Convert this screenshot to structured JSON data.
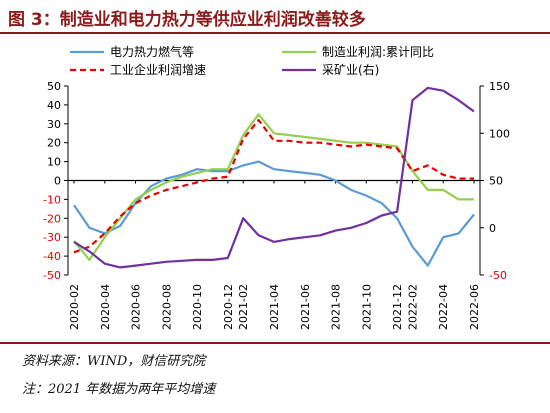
{
  "header": {
    "title": "图 3：制造业和电力热力等供应业利润改善较多"
  },
  "footer": {
    "source": "资料来源：WIND，财信研究院",
    "note": "注：2021 年数据为两年平均增速"
  },
  "chart_data": {
    "type": "line",
    "title": "图 3：制造业和电力热力等供应业利润改善较多",
    "x": [
      "2020-02",
      "2020-03",
      "2020-04",
      "2020-05",
      "2020-06",
      "2020-07",
      "2020-08",
      "2020-09",
      "2020-10",
      "2020-11",
      "2020-12",
      "2021-02",
      "2021-03",
      "2021-04",
      "2021-05",
      "2021-06",
      "2021-07",
      "2021-08",
      "2021-09",
      "2021-10",
      "2021-11",
      "2021-12",
      "2022-02",
      "2022-03",
      "2022-04",
      "2022-05",
      "2022-06"
    ],
    "xtick_labels": [
      "2020-02",
      "2020-04",
      "2020-06",
      "2020-08",
      "2020-10",
      "2020-12",
      "2021-02",
      "2021-04",
      "2021-06",
      "2021-08",
      "2021-10",
      "2021-12",
      "2022-02",
      "2022-04",
      "2022-06"
    ],
    "left_yaxis": {
      "ylim": [
        -50,
        50
      ],
      "ticks": [
        50,
        40,
        30,
        20,
        10,
        0,
        -10,
        -20,
        -30,
        -40,
        -50
      ],
      "negative_tick_color": "#e60000"
    },
    "right_yaxis": {
      "ylim": [
        -50,
        150
      ],
      "ticks": [
        150,
        100,
        50,
        0,
        -50
      ],
      "negative_tick_color": "#e60000"
    },
    "legend_position": "top",
    "grid": false,
    "series": [
      {
        "name": "电力热力燃气等",
        "axis": "left",
        "color": "#5b9bd5",
        "dash": "solid",
        "values": [
          -13,
          -25,
          -28,
          -24,
          -12,
          -3,
          1,
          3,
          6,
          5,
          5,
          8,
          10,
          6,
          5,
          4,
          3,
          0,
          -5,
          -8,
          -12,
          -20,
          -35,
          -45,
          -30,
          -28,
          -18
        ]
      },
      {
        "name": "制造业利润:累计同比",
        "axis": "left",
        "color": "#92d050",
        "dash": "solid",
        "values": [
          -32,
          -42,
          -30,
          -20,
          -10,
          -5,
          -1,
          2,
          4,
          6,
          6,
          24,
          35,
          25,
          24,
          23,
          22,
          21,
          20,
          20,
          19,
          18,
          5,
          -5,
          -5,
          -10,
          -10
        ]
      },
      {
        "name": "工业企业利润增速",
        "axis": "left",
        "color": "#e60000",
        "dash": "dashed",
        "values": [
          -38,
          -35,
          -28,
          -19,
          -12,
          -8,
          -5,
          -3,
          -1,
          1,
          2,
          22,
          32,
          21,
          21,
          20,
          20,
          19,
          18,
          19,
          18,
          17,
          5,
          8,
          3,
          1,
          1
        ]
      },
      {
        "name": "采矿业(右)",
        "axis": "right",
        "color": "#7030a0",
        "dash": "solid",
        "values": [
          -15,
          -25,
          -38,
          -42,
          -40,
          -38,
          -36,
          -35,
          -34,
          -34,
          -32,
          10,
          -8,
          -15,
          -12,
          -10,
          -8,
          -3,
          0,
          5,
          13,
          17,
          135,
          148,
          145,
          135,
          123
        ]
      }
    ]
  }
}
